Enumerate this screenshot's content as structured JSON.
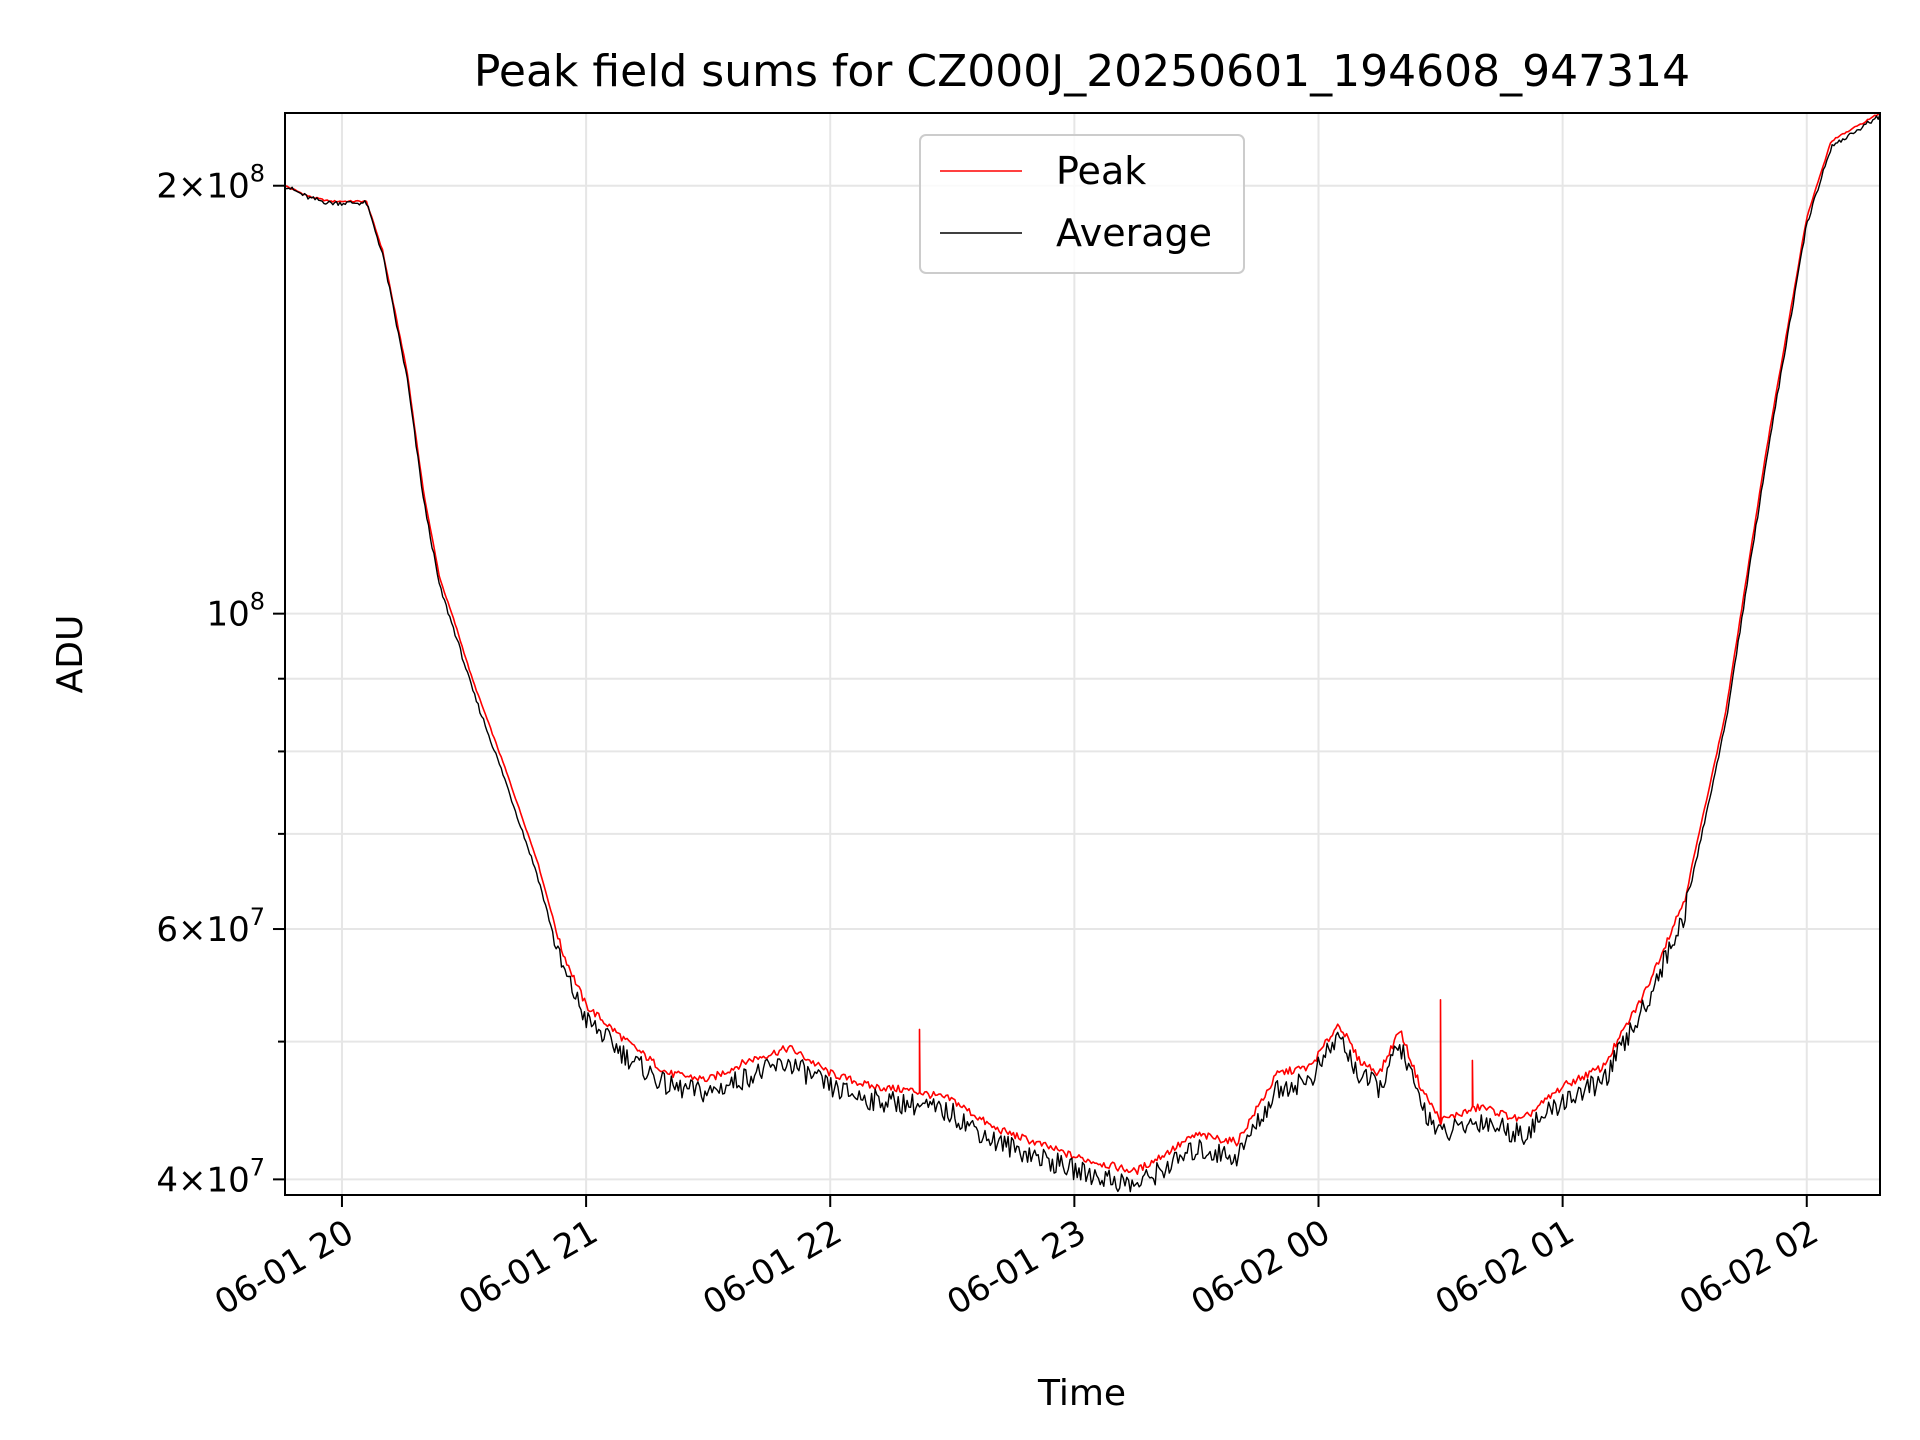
{
  "chart_data": {
    "type": "line",
    "title": "Peak field sums for CZ000J_20250601_194608_947314",
    "xlabel": "Time",
    "ylabel": "ADU",
    "y_scale": "log",
    "ylim": [
      39000000,
      225000000
    ],
    "xlim": [
      "2025-06-01 19:46",
      "2025-06-02 02:18"
    ],
    "grid": true,
    "legend_position": "upper-center",
    "x_ticks": [
      {
        "time": "2025-06-01 20:00",
        "label": "06-01 20"
      },
      {
        "time": "2025-06-01 21:00",
        "label": "06-01 21"
      },
      {
        "time": "2025-06-01 22:00",
        "label": "06-01 22"
      },
      {
        "time": "2025-06-01 23:00",
        "label": "06-01 23"
      },
      {
        "time": "2025-06-02 00:00",
        "label": "06-02 00"
      },
      {
        "time": "2025-06-02 01:00",
        "label": "06-02 01"
      },
      {
        "time": "2025-06-02 02:00",
        "label": "06-02 02"
      }
    ],
    "y_major_ticks": [
      {
        "value": 40000000,
        "mantissa": "4",
        "exponent": "7"
      },
      {
        "value": 60000000,
        "mantissa": "6",
        "exponent": "7"
      },
      {
        "value": 100000000,
        "mantissa": "",
        "exponent": "8"
      },
      {
        "value": 200000000,
        "mantissa": "2",
        "exponent": "8"
      }
    ],
    "y_minor_ticks": [
      50000000,
      70000000,
      80000000,
      90000000
    ],
    "series": [
      {
        "name": "Peak",
        "color": "#ff0000",
        "points": [
          [
            "2025-06-01 19:46",
            200000000
          ],
          [
            "2025-06-01 19:52",
            196500000
          ],
          [
            "2025-06-01 19:57",
            195000000
          ],
          [
            "2025-06-01 20:06",
            195000000
          ],
          [
            "2025-06-01 20:10",
            180000000
          ],
          [
            "2025-06-01 20:16",
            148000000
          ],
          [
            "2025-06-01 20:20",
            122000000
          ],
          [
            "2025-06-01 20:24",
            106000000
          ],
          [
            "2025-06-01 20:28",
            98000000
          ],
          [
            "2025-06-01 20:32",
            90000000
          ],
          [
            "2025-06-01 20:40",
            78000000
          ],
          [
            "2025-06-01 20:48",
            67000000
          ],
          [
            "2025-06-01 20:54",
            58000000
          ],
          [
            "2025-06-01 21:00",
            53000000
          ],
          [
            "2025-06-01 21:10",
            50000000
          ],
          [
            "2025-06-01 21:20",
            47500000
          ],
          [
            "2025-06-01 21:30",
            47000000
          ],
          [
            "2025-06-01 21:40",
            48500000
          ],
          [
            "2025-06-01 21:50",
            49500000
          ],
          [
            "2025-06-01 22:00",
            47500000
          ],
          [
            "2025-06-01 22:10",
            46500000
          ],
          [
            "2025-06-01 22:20",
            46200000
          ],
          [
            "2025-06-01 22:30",
            45500000
          ],
          [
            "2025-06-01 22:40",
            43500000
          ],
          [
            "2025-06-01 22:50",
            42500000
          ],
          [
            "2025-06-01 23:00",
            41500000
          ],
          [
            "2025-06-01 23:15",
            40500000
          ],
          [
            "2025-06-01 23:30",
            43000000
          ],
          [
            "2025-06-01 23:40",
            42500000
          ],
          [
            "2025-06-01 23:50",
            47500000
          ],
          [
            "2025-06-01 23:58",
            48000000
          ],
          [
            "2025-06-02 00:05",
            51500000
          ],
          [
            "2025-06-02 00:10",
            48500000
          ],
          [
            "2025-06-02 00:15",
            47500000
          ],
          [
            "2025-06-02 00:20",
            51000000
          ],
          [
            "2025-06-02 00:25",
            46500000
          ],
          [
            "2025-06-02 00:30",
            44000000
          ],
          [
            "2025-06-02 00:40",
            45000000
          ],
          [
            "2025-06-02 00:50",
            44000000
          ],
          [
            "2025-06-02 01:00",
            46500000
          ],
          [
            "2025-06-02 01:10",
            48000000
          ],
          [
            "2025-06-02 01:20",
            54000000
          ],
          [
            "2025-06-02 01:30",
            63000000
          ],
          [
            "2025-06-02 01:40",
            85000000
          ],
          [
            "2025-06-02 01:50",
            130000000
          ],
          [
            "2025-06-02 02:00",
            190000000
          ],
          [
            "2025-06-02 02:06",
            215000000
          ],
          [
            "2025-06-02 02:18",
            225000000
          ]
        ],
        "spikes": [
          [
            "2025-06-01 22:22",
            51000000
          ],
          [
            "2025-06-02 00:30",
            53500000
          ],
          [
            "2025-06-02 00:38",
            48500000
          ]
        ]
      },
      {
        "name": "Average",
        "color": "#000000",
        "points": [
          [
            "2025-06-01 19:46",
            200000000
          ],
          [
            "2025-06-01 19:52",
            196000000
          ],
          [
            "2025-06-01 19:57",
            194500000
          ],
          [
            "2025-06-01 20:06",
            194500000
          ],
          [
            "2025-06-01 20:10",
            179000000
          ],
          [
            "2025-06-01 20:16",
            146500000
          ],
          [
            "2025-06-01 20:20",
            120500000
          ],
          [
            "2025-06-01 20:24",
            104500000
          ],
          [
            "2025-06-01 20:28",
            96500000
          ],
          [
            "2025-06-01 20:32",
            88500000
          ],
          [
            "2025-06-01 20:40",
            76500000
          ],
          [
            "2025-06-01 20:48",
            65500000
          ],
          [
            "2025-06-01 20:54",
            56500000
          ],
          [
            "2025-06-01 21:00",
            51800000
          ],
          [
            "2025-06-01 21:10",
            48800000
          ],
          [
            "2025-06-01 21:20",
            46500000
          ],
          [
            "2025-06-01 21:30",
            46000000
          ],
          [
            "2025-06-01 21:40",
            47300000
          ],
          [
            "2025-06-01 21:50",
            48300000
          ],
          [
            "2025-06-01 22:00",
            46400000
          ],
          [
            "2025-06-01 22:10",
            45500000
          ],
          [
            "2025-06-01 22:20",
            45200000
          ],
          [
            "2025-06-01 22:30",
            44500000
          ],
          [
            "2025-06-01 22:40",
            42600000
          ],
          [
            "2025-06-01 22:50",
            41600000
          ],
          [
            "2025-06-01 23:00",
            40600000
          ],
          [
            "2025-06-01 23:15",
            39600000
          ],
          [
            "2025-06-01 23:30",
            42000000
          ],
          [
            "2025-06-01 23:40",
            41500000
          ],
          [
            "2025-06-01 23:50",
            46300000
          ],
          [
            "2025-06-01 23:58",
            47000000
          ],
          [
            "2025-06-02 00:05",
            50500000
          ],
          [
            "2025-06-02 00:10",
            47300000
          ],
          [
            "2025-06-02 00:15",
            46400000
          ],
          [
            "2025-06-02 00:20",
            49800000
          ],
          [
            "2025-06-02 00:25",
            45300000
          ],
          [
            "2025-06-02 00:30",
            43000000
          ],
          [
            "2025-06-02 00:40",
            44000000
          ],
          [
            "2025-06-02 00:50",
            43000000
          ],
          [
            "2025-06-02 01:00",
            45400000
          ],
          [
            "2025-06-02 01:10",
            46900000
          ],
          [
            "2025-06-02 01:20",
            52800000
          ],
          [
            "2025-06-02 01:30",
            61500000
          ],
          [
            "2025-06-02 01:40",
            83500000
          ],
          [
            "2025-06-02 01:50",
            128000000
          ],
          [
            "2025-06-02 02:00",
            188000000
          ],
          [
            "2025-06-02 02:06",
            213000000
          ],
          [
            "2025-06-02 02:18",
            224000000
          ]
        ]
      }
    ]
  }
}
